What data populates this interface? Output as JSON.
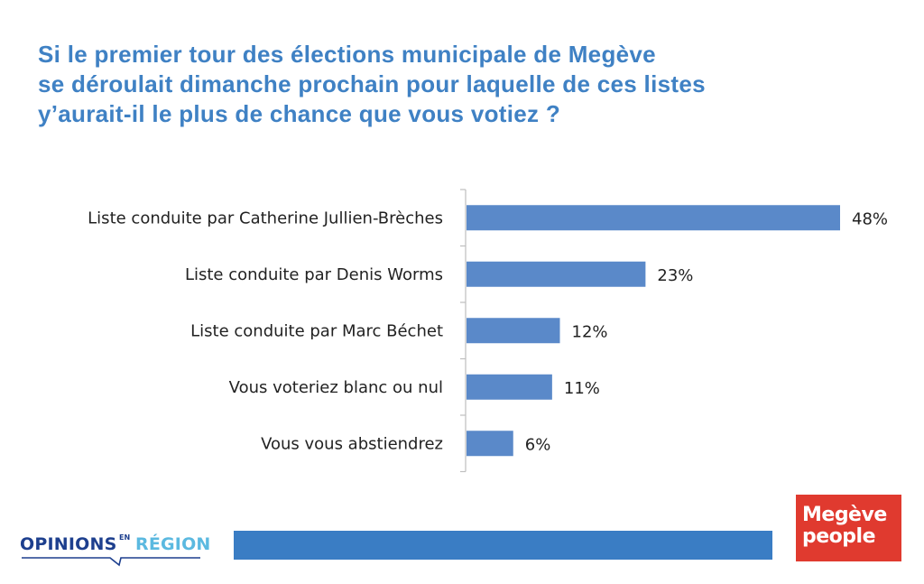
{
  "title_lines": [
    "Si le premier tour des élections municipale de Megève",
    "se déroulait dimanche prochain pour laquelle de ces listes",
    "y’aurait-il le plus de chance que vous votiez ?"
  ],
  "chart_data": {
    "type": "bar",
    "orientation": "horizontal",
    "categories": [
      "Liste conduite par Catherine Jullien-Brèches",
      "Liste conduite par Denis Worms",
      "Liste conduite par Marc Béchet",
      "Vous voteriez blanc ou nul",
      "Vous vous abstiendrez"
    ],
    "values": [
      48,
      23,
      12,
      11,
      6
    ],
    "data_labels": [
      "48%",
      "23%",
      "12%",
      "11%",
      "6%"
    ],
    "xlim": [
      0,
      50
    ],
    "unit": "%",
    "grid": false,
    "legend": "none",
    "bar_color": "#5a89c9"
  },
  "footer": {
    "left_logo": {
      "word1": "OPINIONS",
      "word2": "EN",
      "word3": "RÉGION"
    },
    "right_logo": {
      "line1": "Megève",
      "line2": "people"
    },
    "bar_color": "#3a7dc4",
    "brand_color": "#e03a2f"
  }
}
